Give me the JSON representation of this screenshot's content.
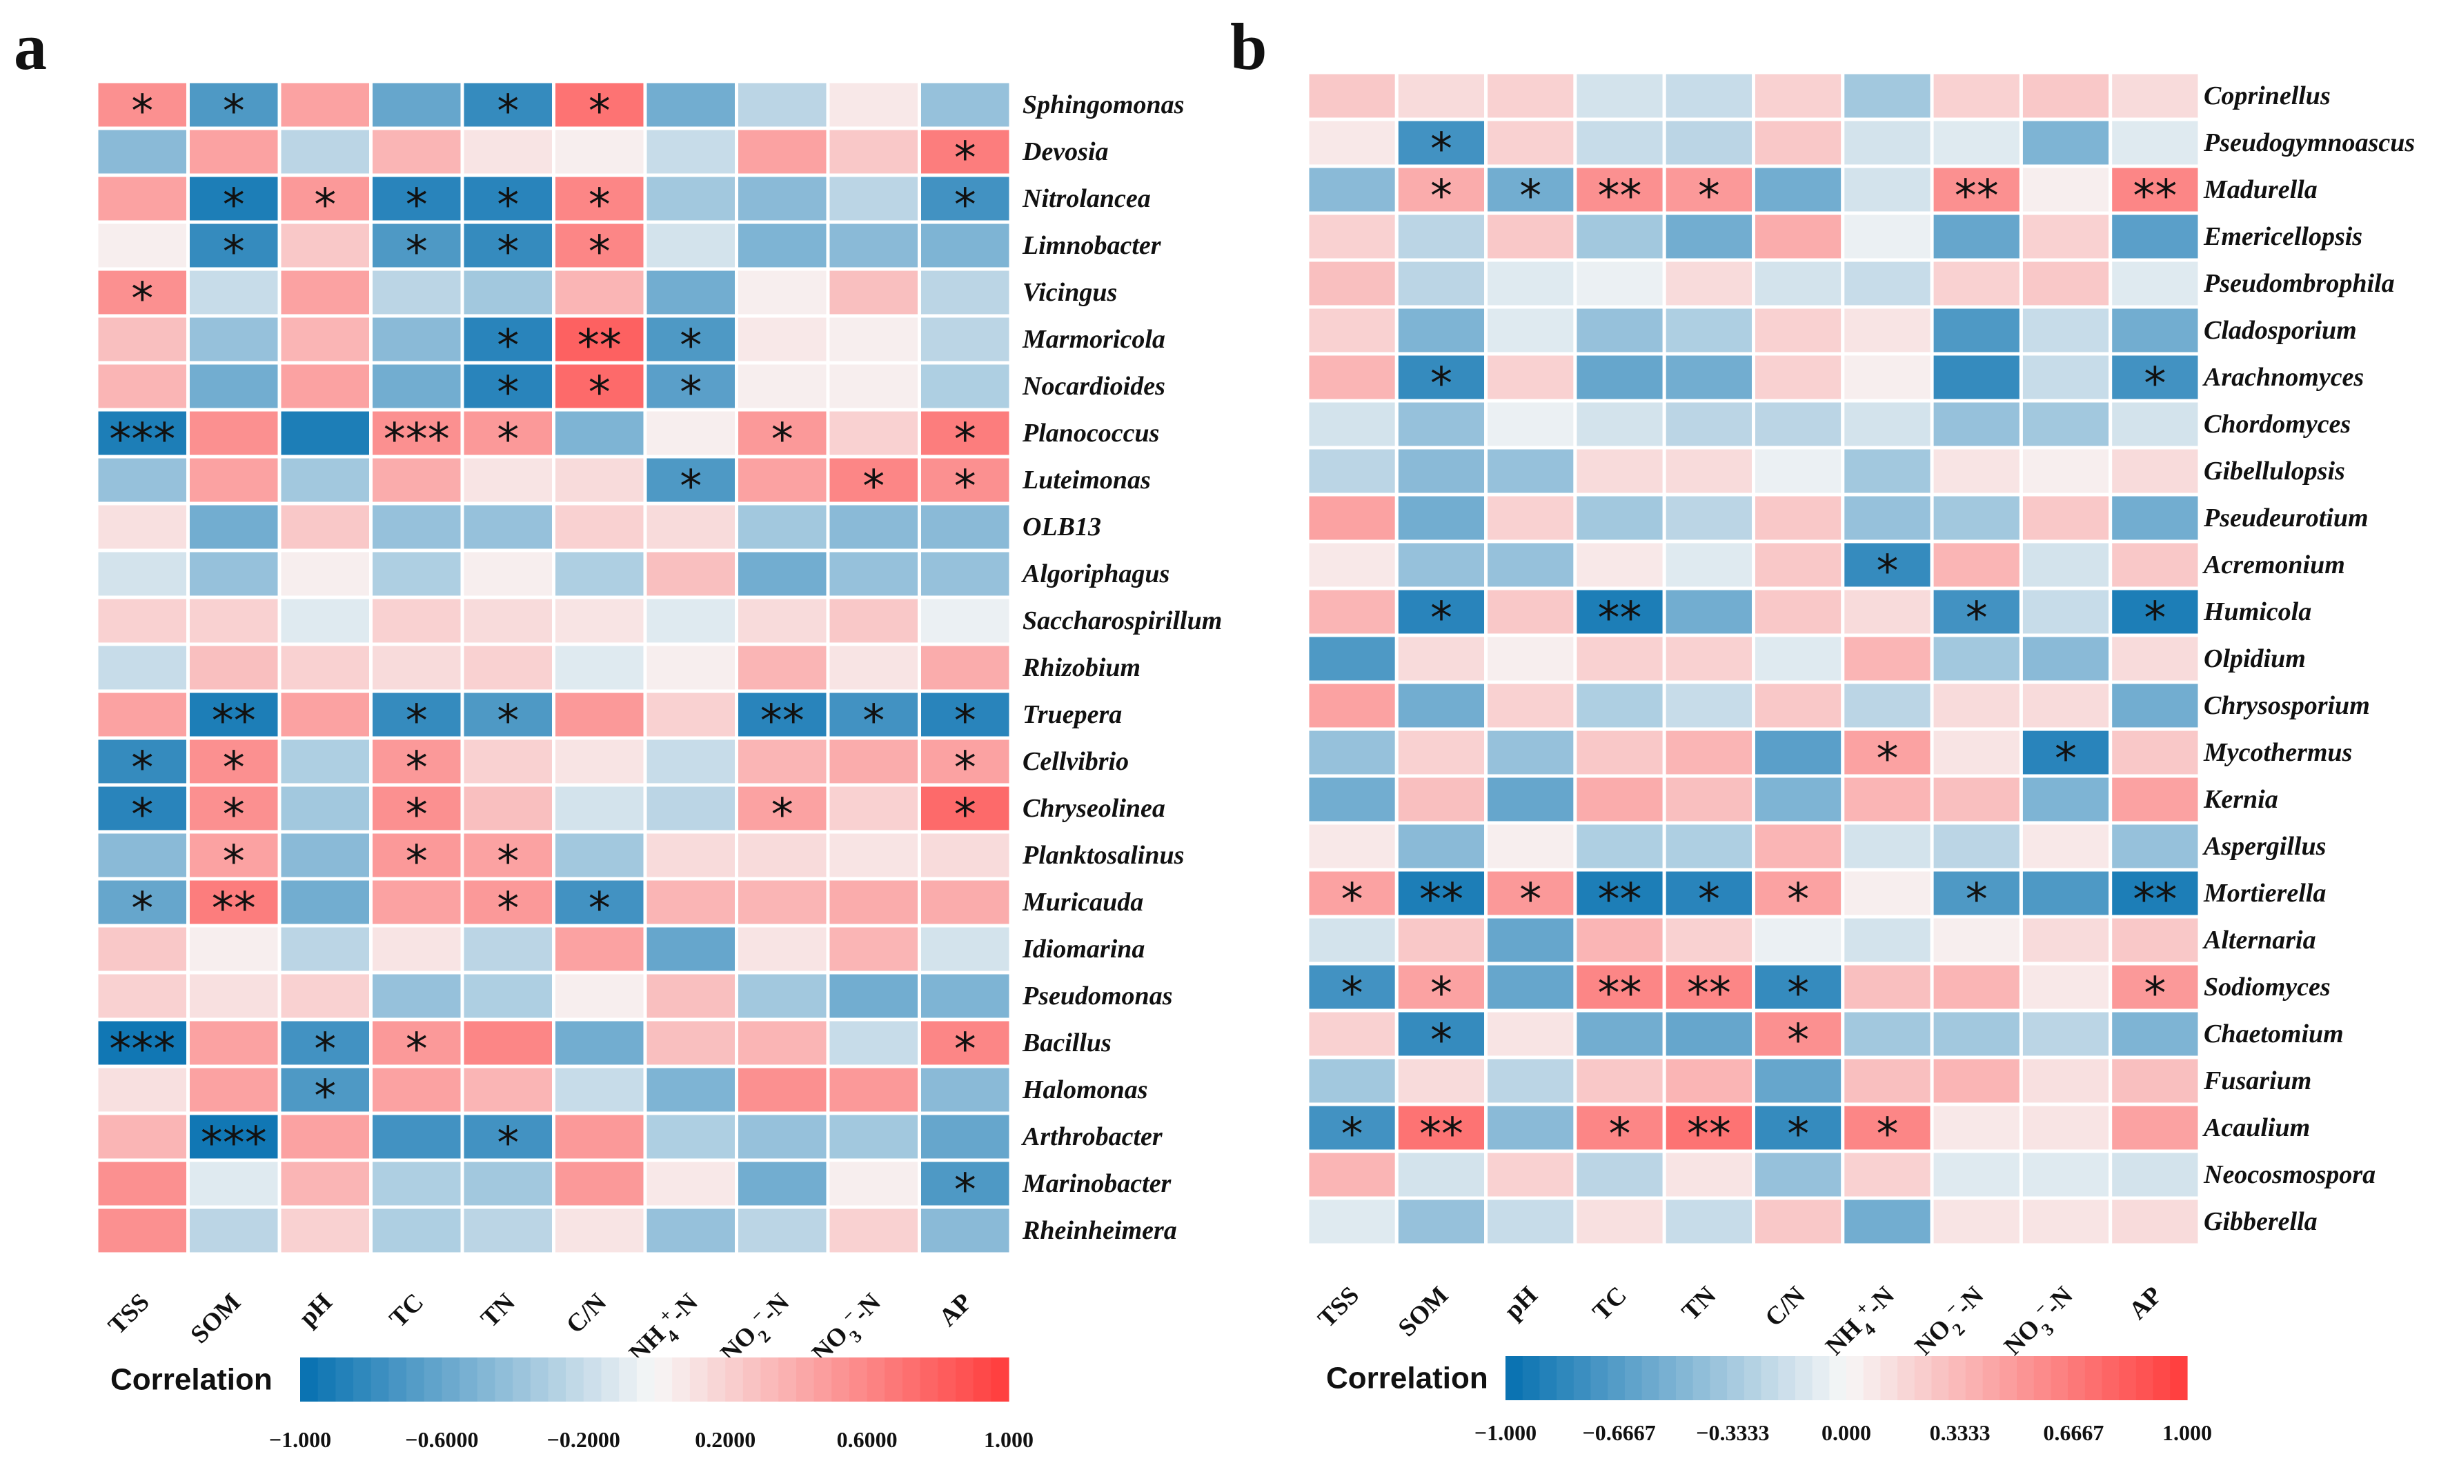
{
  "colors": {
    "negative": "#0570b0",
    "neutral": "#f7f7f7",
    "positive": "#ff3b3b"
  },
  "legend": {
    "title": "Correlation"
  },
  "chart_data": [
    {
      "type": "heatmap",
      "panel_label": "a",
      "columns": [
        "TSS",
        "SOM",
        "pH",
        "TC",
        "TN",
        "C/N",
        "NH4+-N",
        "NO2−-N",
        "NO3−-N",
        "AP"
      ],
      "rows": [
        "Sphingomonas",
        "Devosia",
        "Nitrolancea",
        "Limnobacter",
        "Vicingus",
        "Marmoricola",
        "Nocardioides",
        "Planococcus",
        "Luteimonas",
        "OLB13",
        "Algoriphagus",
        "Saccharospirillum",
        "Rhizobium",
        "Truepera",
        "Cellvibrio",
        "Chryseolinea",
        "Planktosalinus",
        "Muricauda",
        "Idiomarina",
        "Pseudomonas",
        "Bacillus",
        "Halomonas",
        "Arthrobacter",
        "Marinobacter",
        "Rheinheimera"
      ],
      "values": [
        [
          0.55,
          -0.7,
          0.45,
          -0.6,
          -0.8,
          0.7,
          -0.55,
          -0.25,
          0.08,
          -0.4
        ],
        [
          -0.45,
          0.45,
          -0.25,
          0.35,
          0.1,
          0.05,
          -0.2,
          0.45,
          0.25,
          0.65
        ],
        [
          0.45,
          -0.9,
          0.5,
          -0.85,
          -0.85,
          0.6,
          -0.35,
          -0.45,
          -0.25,
          -0.75
        ],
        [
          0.05,
          -0.8,
          0.25,
          -0.7,
          -0.8,
          0.6,
          -0.15,
          -0.5,
          -0.45,
          -0.5
        ],
        [
          0.55,
          -0.2,
          0.45,
          -0.25,
          -0.35,
          0.35,
          -0.55,
          0.05,
          0.3,
          -0.25
        ],
        [
          0.3,
          -0.4,
          0.35,
          -0.45,
          -0.85,
          0.8,
          -0.7,
          0.08,
          0.05,
          -0.25
        ],
        [
          0.35,
          -0.55,
          0.45,
          -0.55,
          -0.85,
          0.75,
          -0.65,
          0.05,
          0.05,
          -0.3
        ],
        [
          -0.9,
          0.55,
          -0.9,
          0.55,
          0.5,
          -0.5,
          0.05,
          0.5,
          0.2,
          0.65
        ],
        [
          -0.4,
          0.45,
          -0.35,
          0.4,
          0.1,
          0.15,
          -0.7,
          0.45,
          0.6,
          0.55
        ],
        [
          0.12,
          -0.55,
          0.25,
          -0.4,
          -0.4,
          0.2,
          0.15,
          -0.35,
          -0.45,
          -0.45
        ],
        [
          -0.15,
          -0.4,
          0.05,
          -0.3,
          0.05,
          -0.3,
          0.3,
          -0.55,
          -0.4,
          -0.4
        ],
        [
          0.2,
          0.2,
          -0.1,
          0.2,
          0.15,
          0.1,
          -0.1,
          0.15,
          0.25,
          -0.05
        ],
        [
          -0.2,
          0.3,
          0.2,
          0.15,
          0.2,
          -0.1,
          0.05,
          0.35,
          0.1,
          0.4
        ],
        [
          0.45,
          -0.9,
          0.45,
          -0.8,
          -0.7,
          0.5,
          0.2,
          -0.85,
          -0.75,
          -0.85
        ],
        [
          -0.8,
          0.55,
          -0.3,
          0.5,
          0.2,
          0.1,
          -0.2,
          0.35,
          0.4,
          0.45
        ],
        [
          -0.85,
          0.55,
          -0.35,
          0.55,
          0.3,
          -0.15,
          -0.25,
          0.45,
          0.2,
          0.75
        ],
        [
          -0.45,
          0.45,
          -0.45,
          0.5,
          0.45,
          -0.35,
          0.15,
          0.15,
          0.1,
          0.15
        ],
        [
          -0.6,
          0.65,
          -0.55,
          0.45,
          0.5,
          -0.75,
          0.35,
          0.35,
          0.4,
          0.4
        ],
        [
          0.25,
          0.05,
          -0.25,
          0.1,
          -0.25,
          0.45,
          -0.6,
          0.1,
          0.35,
          -0.15
        ],
        [
          0.2,
          0.12,
          0.2,
          -0.4,
          -0.3,
          0.05,
          0.3,
          -0.35,
          -0.55,
          -0.5
        ],
        [
          -0.95,
          0.45,
          -0.75,
          0.5,
          0.6,
          -0.55,
          0.3,
          0.35,
          -0.2,
          0.6
        ],
        [
          0.12,
          0.45,
          -0.7,
          0.45,
          0.35,
          -0.2,
          -0.5,
          0.55,
          0.5,
          -0.45
        ],
        [
          0.35,
          -0.95,
          0.45,
          -0.75,
          -0.75,
          0.5,
          -0.3,
          -0.4,
          -0.35,
          -0.6
        ],
        [
          0.55,
          -0.1,
          0.35,
          -0.3,
          -0.35,
          0.5,
          0.08,
          -0.55,
          0.05,
          -0.7
        ],
        [
          0.55,
          -0.25,
          0.2,
          -0.3,
          -0.25,
          0.1,
          -0.4,
          -0.25,
          0.2,
          -0.45
        ]
      ],
      "significance": [
        [
          "*",
          "*",
          "",
          "",
          "*",
          "*",
          "",
          "",
          "",
          ""
        ],
        [
          "",
          "",
          "",
          "",
          "",
          "",
          "",
          "",
          "",
          "*"
        ],
        [
          "",
          "*",
          "*",
          "*",
          "*",
          "*",
          "",
          "",
          "",
          "*"
        ],
        [
          "",
          "*",
          "",
          "*",
          "*",
          "*",
          "",
          "",
          "",
          ""
        ],
        [
          "*",
          "",
          "",
          "",
          "",
          "",
          "",
          "",
          "",
          ""
        ],
        [
          "",
          "",
          "",
          "",
          "*",
          "**",
          "*",
          "",
          "",
          ""
        ],
        [
          "",
          "",
          "",
          "",
          "*",
          "*",
          "*",
          "",
          "",
          ""
        ],
        [
          "***",
          "",
          "",
          "***",
          "*",
          "",
          "",
          "*",
          "",
          "*"
        ],
        [
          "",
          "",
          "",
          "",
          "",
          "",
          "*",
          "",
          "*",
          "*"
        ],
        [
          "",
          "",
          "",
          "",
          "",
          "",
          "",
          "",
          "",
          ""
        ],
        [
          "",
          "",
          "",
          "",
          "",
          "",
          "",
          "",
          "",
          ""
        ],
        [
          "",
          "",
          "",
          "",
          "",
          "",
          "",
          "",
          "",
          ""
        ],
        [
          "",
          "",
          "",
          "",
          "",
          "",
          "",
          "",
          "",
          ""
        ],
        [
          "",
          "**",
          "",
          "*",
          "*",
          "",
          "",
          "**",
          "*",
          "*"
        ],
        [
          "*",
          "*",
          "",
          "*",
          "",
          "",
          "",
          "",
          "",
          "*"
        ],
        [
          "*",
          "*",
          "",
          "*",
          "",
          "",
          "",
          "*",
          "",
          "*"
        ],
        [
          "",
          "*",
          "",
          "*",
          "*",
          "",
          "",
          "",
          "",
          ""
        ],
        [
          "*",
          "**",
          "",
          "",
          "*",
          "*",
          "",
          "",
          "",
          ""
        ],
        [
          "",
          "",
          "",
          "",
          "",
          "",
          "",
          "",
          "",
          ""
        ],
        [
          "",
          "",
          "",
          "",
          "",
          "",
          "",
          "",
          "",
          ""
        ],
        [
          "***",
          "",
          "*",
          "*",
          "",
          "",
          "",
          "",
          "",
          "*"
        ],
        [
          "",
          "",
          "*",
          "",
          "",
          "",
          "",
          "",
          "",
          ""
        ],
        [
          "",
          "***",
          "",
          "",
          "*",
          "",
          "",
          "",
          "",
          ""
        ],
        [
          "",
          "",
          "",
          "",
          "",
          "",
          "",
          "",
          "",
          "*"
        ],
        [
          "",
          "",
          "",
          "",
          "",
          "",
          "",
          "",
          "",
          ""
        ]
      ],
      "color_range": [
        -1,
        1
      ],
      "legend_ticks": [
        "−1.000",
        "−0.6000",
        "−0.2000",
        "0.2000",
        "0.6000",
        "1.000"
      ]
    },
    {
      "type": "heatmap",
      "panel_label": "b",
      "columns": [
        "TSS",
        "SOM",
        "pH",
        "TC",
        "TN",
        "C/N",
        "NH4+-N",
        "NO2−-N",
        "NO3−-N",
        "AP"
      ],
      "rows": [
        "Coprinellus",
        "Pseudogymnoascus",
        "Madurella",
        "Emericellopsis",
        "Pseudombrophila",
        "Cladosporium",
        "Arachnomyces",
        "Chordomyces",
        "Gibellulopsis",
        "Pseudeurotium",
        "Acremonium",
        "Humicola",
        "Olpidium",
        "Chrysosporium",
        "Mycothermus",
        "Kernia",
        "Aspergillus",
        "Mortierella",
        "Alternaria",
        "Sodiomyces",
        "Chaetomium",
        "Fusarium",
        "Acaulium",
        "Neocosmospora",
        "Gibberella"
      ],
      "values": [
        [
          0.25,
          0.15,
          0.2,
          -0.15,
          -0.2,
          0.2,
          -0.35,
          0.2,
          0.25,
          0.15
        ],
        [
          0.08,
          -0.75,
          0.2,
          -0.2,
          -0.25,
          0.25,
          -0.15,
          -0.1,
          -0.5,
          -0.1
        ],
        [
          -0.45,
          0.4,
          -0.55,
          0.55,
          0.5,
          -0.55,
          -0.15,
          0.55,
          0.05,
          0.6
        ],
        [
          0.2,
          -0.25,
          0.25,
          -0.35,
          -0.55,
          0.4,
          -0.05,
          -0.6,
          0.2,
          -0.65
        ],
        [
          0.3,
          -0.25,
          -0.1,
          -0.05,
          0.15,
          -0.15,
          -0.2,
          0.2,
          0.25,
          -0.1
        ],
        [
          0.2,
          -0.5,
          -0.1,
          -0.4,
          -0.3,
          0.2,
          0.1,
          -0.7,
          -0.2,
          -0.55
        ],
        [
          0.35,
          -0.8,
          0.2,
          -0.6,
          -0.55,
          0.2,
          0.05,
          -0.8,
          -0.2,
          -0.75
        ],
        [
          -0.15,
          -0.4,
          -0.05,
          -0.15,
          -0.25,
          -0.25,
          -0.15,
          -0.4,
          -0.35,
          -0.15
        ],
        [
          -0.25,
          -0.45,
          -0.4,
          0.15,
          0.15,
          -0.05,
          -0.35,
          0.1,
          0.05,
          0.15
        ],
        [
          0.45,
          -0.55,
          0.2,
          -0.35,
          -0.25,
          0.25,
          -0.4,
          -0.35,
          0.25,
          -0.55
        ],
        [
          0.08,
          -0.4,
          -0.4,
          0.08,
          -0.1,
          0.25,
          -0.8,
          0.35,
          -0.15,
          0.25
        ],
        [
          0.35,
          -0.85,
          0.25,
          -0.9,
          -0.55,
          0.25,
          0.15,
          -0.75,
          -0.2,
          -0.9
        ],
        [
          -0.7,
          0.15,
          0.05,
          0.2,
          0.2,
          -0.1,
          0.35,
          -0.35,
          -0.45,
          0.15
        ],
        [
          0.45,
          -0.55,
          0.2,
          -0.3,
          -0.2,
          0.25,
          -0.25,
          0.15,
          0.15,
          -0.55
        ],
        [
          -0.4,
          0.2,
          -0.4,
          0.25,
          0.35,
          -0.65,
          0.45,
          0.1,
          -0.85,
          0.25
        ],
        [
          -0.55,
          0.3,
          -0.6,
          0.4,
          0.3,
          -0.5,
          0.35,
          0.3,
          -0.5,
          0.45
        ],
        [
          0.08,
          -0.45,
          0.05,
          -0.3,
          -0.3,
          0.35,
          -0.15,
          -0.25,
          0.08,
          -0.4
        ],
        [
          0.45,
          -0.9,
          0.5,
          -0.9,
          -0.85,
          0.45,
          0.05,
          -0.7,
          -0.7,
          -0.9
        ],
        [
          -0.15,
          0.25,
          -0.6,
          0.35,
          0.2,
          -0.05,
          -0.15,
          0.05,
          0.15,
          0.25
        ],
        [
          -0.75,
          0.45,
          -0.6,
          0.6,
          0.6,
          -0.8,
          0.3,
          0.35,
          0.08,
          0.5
        ],
        [
          0.2,
          -0.8,
          0.1,
          -0.55,
          -0.6,
          0.55,
          -0.35,
          -0.35,
          -0.25,
          -0.5
        ],
        [
          -0.35,
          0.15,
          -0.25,
          0.25,
          0.35,
          -0.6,
          0.3,
          0.35,
          0.12,
          0.3
        ],
        [
          -0.75,
          0.7,
          -0.45,
          0.6,
          0.7,
          -0.8,
          0.6,
          0.08,
          0.1,
          0.45
        ],
        [
          0.35,
          -0.15,
          0.2,
          -0.25,
          0.1,
          -0.4,
          0.2,
          -0.1,
          -0.1,
          -0.15
        ],
        [
          -0.1,
          -0.4,
          -0.2,
          0.12,
          -0.2,
          0.25,
          -0.55,
          0.1,
          0.1,
          0.15
        ]
      ],
      "significance": [
        [
          "",
          "",
          "",
          "",
          "",
          "",
          "",
          "",
          "",
          ""
        ],
        [
          "",
          "*",
          "",
          "",
          "",
          "",
          "",
          "",
          "",
          ""
        ],
        [
          "",
          "*",
          "*",
          "**",
          "*",
          "",
          "",
          "**",
          "",
          "**"
        ],
        [
          "",
          "",
          "",
          "",
          "",
          "",
          "",
          "",
          "",
          ""
        ],
        [
          "",
          "",
          "",
          "",
          "",
          "",
          "",
          "",
          "",
          ""
        ],
        [
          "",
          "",
          "",
          "",
          "",
          "",
          "",
          "",
          "",
          ""
        ],
        [
          "",
          "*",
          "",
          "",
          "",
          "",
          "",
          "",
          "",
          "*"
        ],
        [
          "",
          "",
          "",
          "",
          "",
          "",
          "",
          "",
          "",
          ""
        ],
        [
          "",
          "",
          "",
          "",
          "",
          "",
          "",
          "",
          "",
          ""
        ],
        [
          "",
          "",
          "",
          "",
          "",
          "",
          "",
          "",
          "",
          ""
        ],
        [
          "",
          "",
          "",
          "",
          "",
          "",
          "*",
          "",
          "",
          ""
        ],
        [
          "",
          "*",
          "",
          "**",
          "",
          "",
          "",
          "*",
          "",
          "*"
        ],
        [
          "",
          "",
          "",
          "",
          "",
          "",
          "",
          "",
          "",
          ""
        ],
        [
          "",
          "",
          "",
          "",
          "",
          "",
          "",
          "",
          "",
          ""
        ],
        [
          "",
          "",
          "",
          "",
          "",
          "",
          "*",
          "",
          "*",
          ""
        ],
        [
          "",
          "",
          "",
          "",
          "",
          "",
          "",
          "",
          "",
          ""
        ],
        [
          "",
          "",
          "",
          "",
          "",
          "",
          "",
          "",
          "",
          ""
        ],
        [
          "*",
          "**",
          "*",
          "**",
          "*",
          "*",
          "",
          "*",
          "",
          "**"
        ],
        [
          "",
          "",
          "",
          "",
          "",
          "",
          "",
          "",
          "",
          ""
        ],
        [
          "*",
          "*",
          "",
          "**",
          "**",
          "*",
          "",
          "",
          "",
          "*"
        ],
        [
          "",
          "*",
          "",
          "",
          "",
          "*",
          "",
          "",
          "",
          ""
        ],
        [
          "",
          "",
          "",
          "",
          "",
          "",
          "",
          "",
          "",
          ""
        ],
        [
          "*",
          "**",
          "",
          "*",
          "**",
          "*",
          "*",
          "",
          "",
          ""
        ],
        [
          "",
          "",
          "",
          "",
          "",
          "",
          "",
          "",
          "",
          ""
        ],
        [
          "",
          "",
          "",
          "",
          "",
          "",
          "",
          "",
          "",
          ""
        ]
      ],
      "color_range": [
        -1,
        1
      ],
      "legend_ticks": [
        "−1.000",
        "−0.6667",
        "−0.3333",
        "0.000",
        "0.3333",
        "0.6667",
        "1.000"
      ]
    }
  ]
}
